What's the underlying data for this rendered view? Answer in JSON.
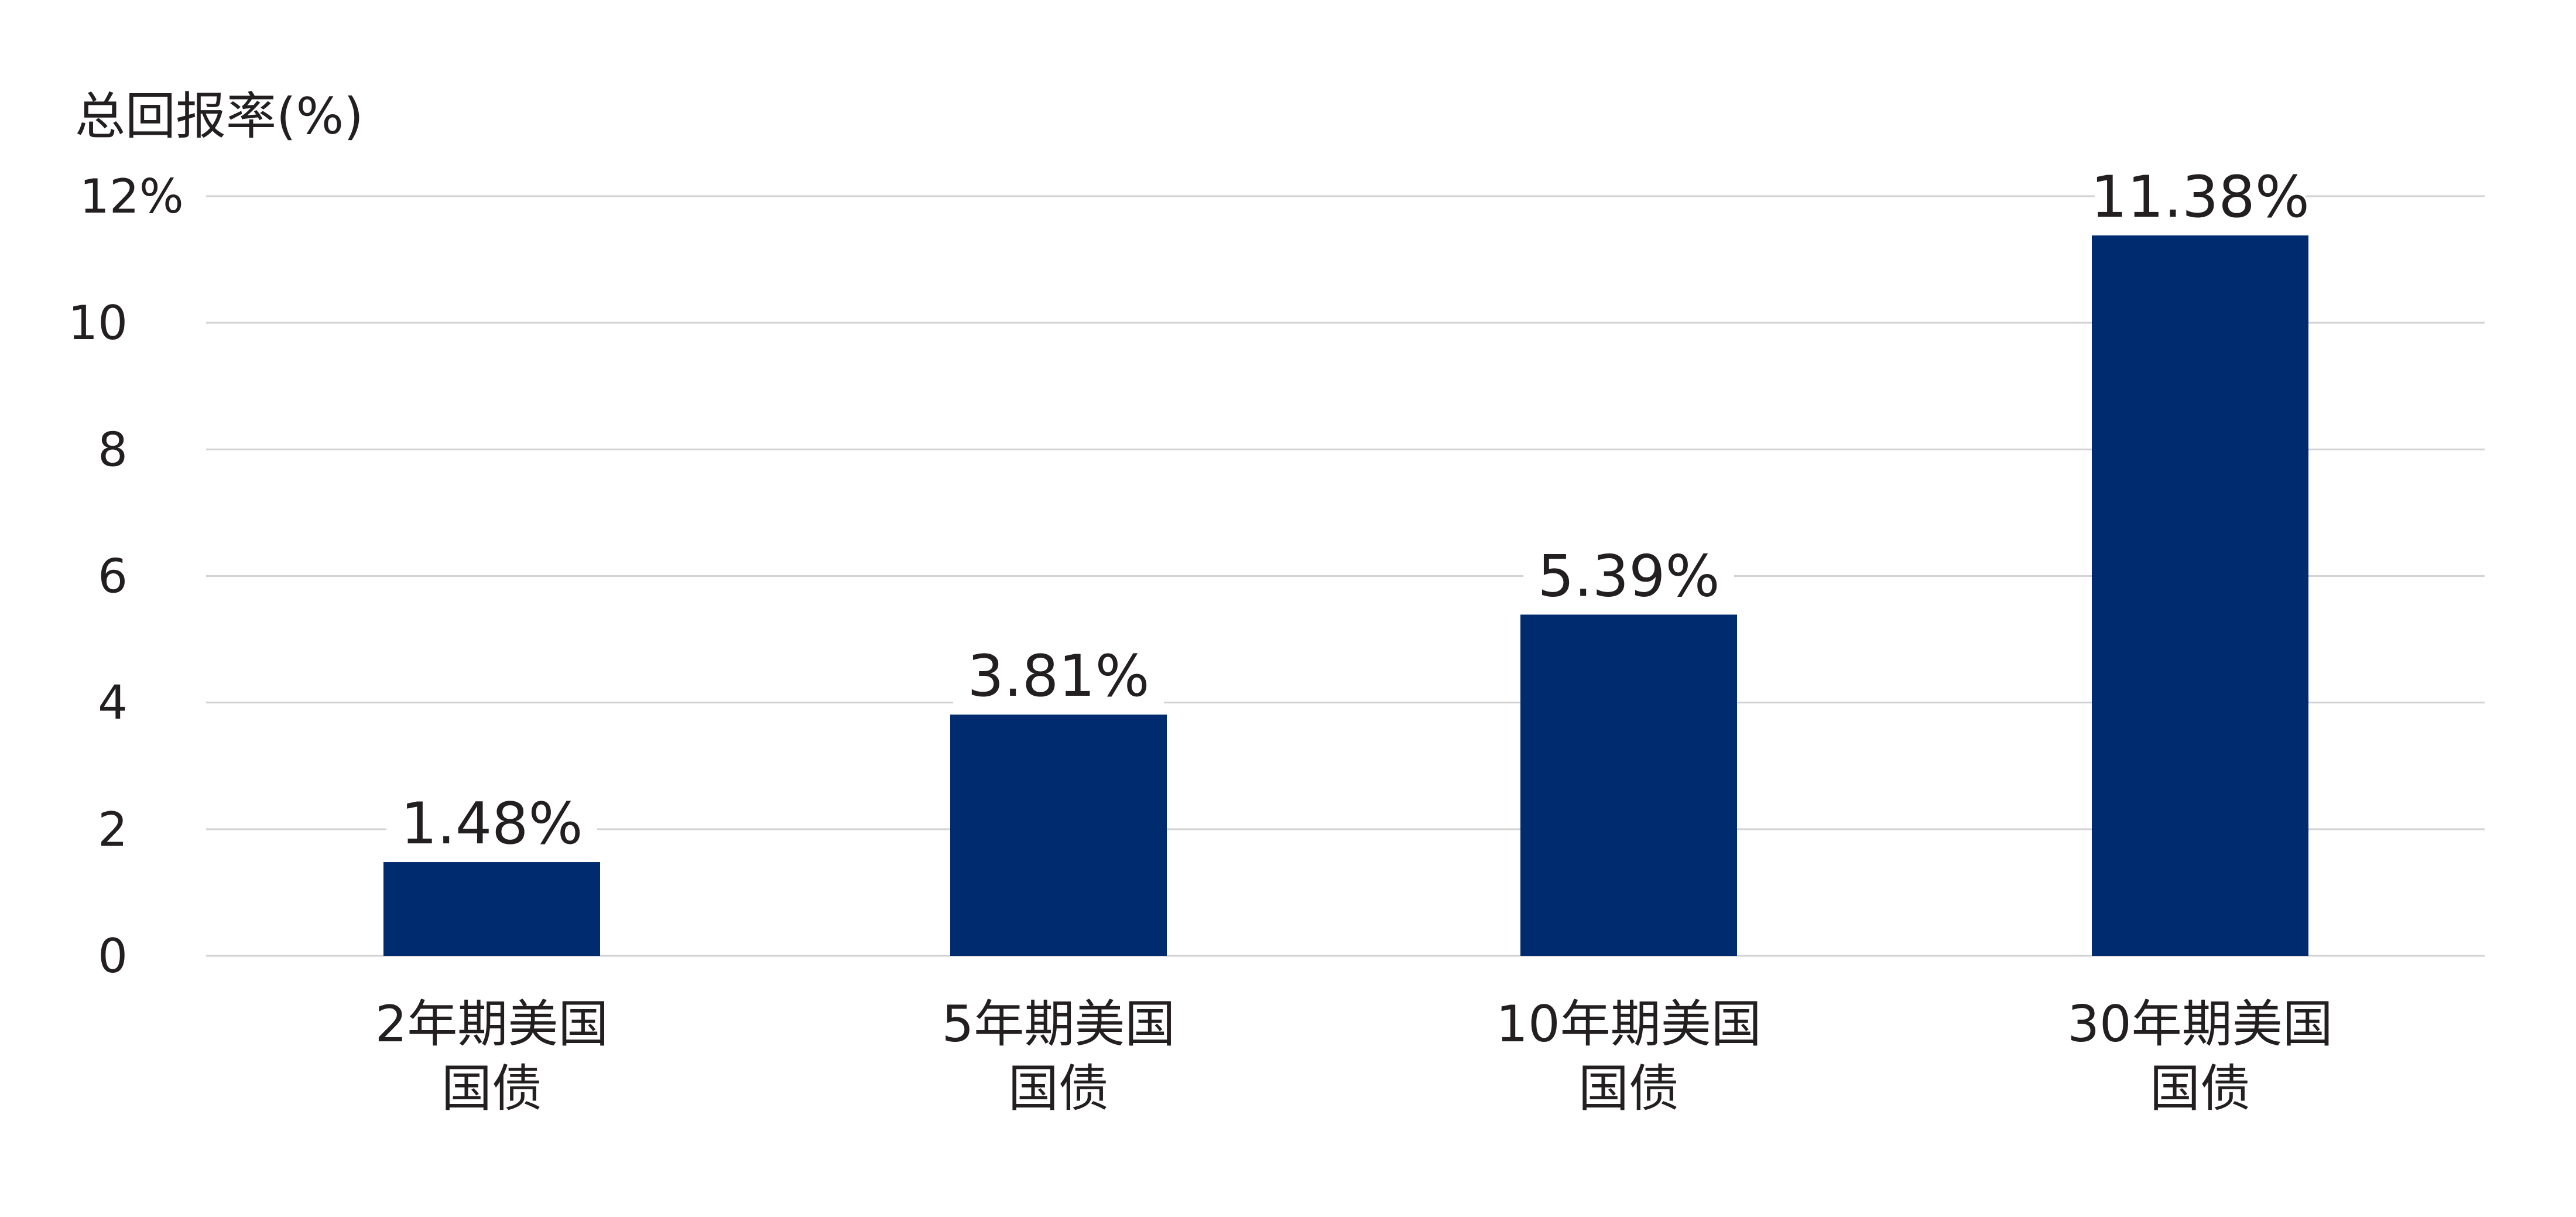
{
  "chart_data": {
    "type": "bar",
    "ylabel": "总回报率(%)",
    "ylim": [
      0,
      12
    ],
    "yticks": [
      {
        "value": 0,
        "label": "0"
      },
      {
        "value": 2,
        "label": "2"
      },
      {
        "value": 4,
        "label": "4"
      },
      {
        "value": 6,
        "label": "6"
      },
      {
        "value": 8,
        "label": "8"
      },
      {
        "value": 10,
        "label": "10"
      },
      {
        "value": 12,
        "label": "12%"
      }
    ],
    "categories": [
      [
        "2年期美国",
        "国债"
      ],
      [
        "5年期美国",
        "国债"
      ],
      [
        "10年期美国",
        "国债"
      ],
      [
        "30年期美国",
        "国债"
      ]
    ],
    "values": [
      1.48,
      3.81,
      5.39,
      11.38
    ],
    "data_labels": [
      "1.48%",
      "3.81%",
      "5.39%",
      "11.38%"
    ],
    "grid": true,
    "legend": "none"
  },
  "colors": {
    "bar": "#002b6e",
    "grid": "#d3d3d3",
    "text": "#231f20"
  }
}
